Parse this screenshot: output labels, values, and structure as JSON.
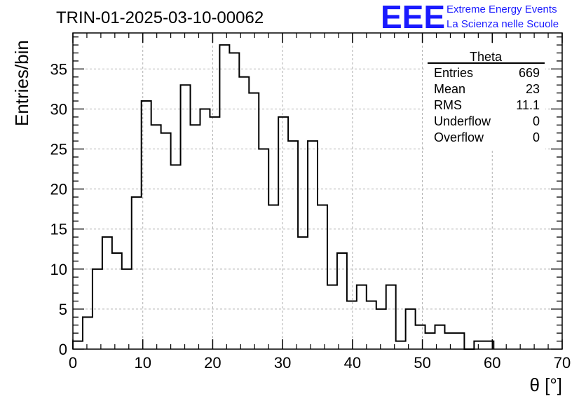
{
  "title": "TRIN-01-2025-03-10-00062",
  "logo": {
    "mark": "EEE",
    "line1": "Extreme Energy Events",
    "line2": "La Scienza nelle Scuole",
    "color": "#1a1aff"
  },
  "stats": {
    "name": "Theta",
    "rows": [
      {
        "label": "Entries",
        "value": "669"
      },
      {
        "label": "Mean",
        "value": "23"
      },
      {
        "label": "RMS",
        "value": "11.1"
      },
      {
        "label": "Underflow",
        "value": "0"
      },
      {
        "label": "Overflow",
        "value": "0"
      }
    ]
  },
  "chart_data": {
    "type": "bar",
    "style": "step-histogram",
    "xlabel": "θ [°]",
    "ylabel": "Entries/bin",
    "xlim": [
      0,
      70
    ],
    "ylim": [
      0,
      39.5
    ],
    "grid": true,
    "bin_width": 1.4,
    "bin_edges_start": 0,
    "x_ticks": [
      0,
      10,
      20,
      30,
      40,
      50,
      60,
      70
    ],
    "y_ticks": [
      0,
      5,
      10,
      15,
      20,
      25,
      30,
      35
    ],
    "values": [
      1,
      4,
      10,
      14,
      12,
      10,
      19,
      31,
      28,
      27,
      23,
      33,
      28,
      30,
      29,
      38,
      37,
      34,
      32,
      25,
      18,
      29,
      26,
      14,
      26,
      18,
      8,
      12,
      6,
      8,
      6,
      5,
      8,
      1,
      5,
      3,
      2,
      3,
      2,
      2,
      0,
      1,
      1,
      0,
      0,
      0,
      0,
      0,
      0,
      0
    ]
  }
}
